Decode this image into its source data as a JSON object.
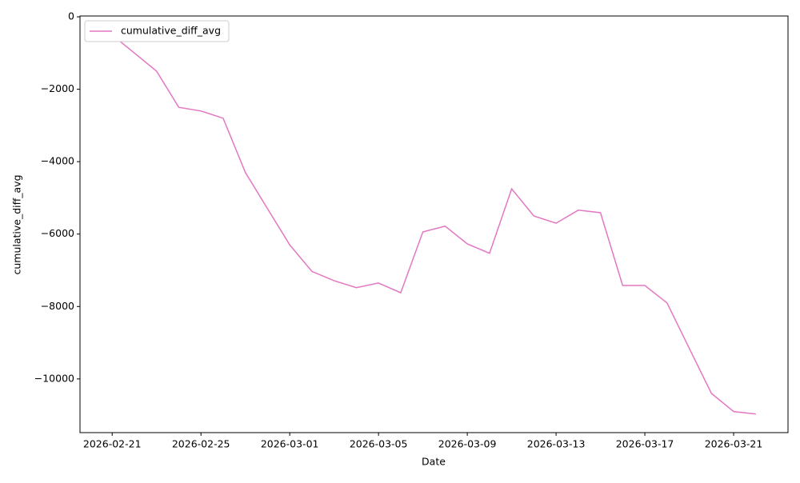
{
  "chart_data": {
    "type": "line",
    "x_label": "Date",
    "y_label": "cumulative_diff_avg",
    "x": [
      "2026-02-21",
      "2026-02-22",
      "2026-02-23",
      "2026-02-24",
      "2026-02-25",
      "2026-02-26",
      "2026-02-27",
      "2026-02-28",
      "2026-03-01",
      "2026-03-02",
      "2026-03-03",
      "2026-03-04",
      "2026-03-05",
      "2026-03-06",
      "2026-03-07",
      "2026-03-08",
      "2026-03-09",
      "2026-03-10",
      "2026-03-11",
      "2026-03-12",
      "2026-03-13",
      "2026-03-14",
      "2026-03-15",
      "2026-03-16",
      "2026-03-17",
      "2026-03-18",
      "2026-03-19",
      "2026-03-20",
      "2026-03-21",
      "2026-03-22"
    ],
    "series": [
      {
        "name": "cumulative_diff_avg",
        "color": "#e377c2",
        "values": [
          -500,
          -1000,
          -1500,
          -2500,
          -2600,
          -2800,
          -4300,
          -5300,
          -6300,
          -7030,
          -7290,
          -7480,
          -7350,
          -7620,
          -5940,
          -5780,
          -6270,
          -6530,
          -4750,
          -5500,
          -5700,
          -5340,
          -5410,
          -7420,
          -7420,
          -7900,
          -9150,
          -10400,
          -10900,
          -10970
        ]
      }
    ],
    "xlim": [
      "2026-02-19T13:12",
      "2026-03-23T10:48"
    ],
    "xticks": [
      "2026-02-21",
      "2026-02-25",
      "2026-03-01",
      "2026-03-05",
      "2026-03-09",
      "2026-03-13",
      "2026-03-17",
      "2026-03-21"
    ],
    "ylim": [
      -11483,
      23
    ],
    "yticks": [
      0,
      {
        "value": -2000,
        "label": "−2000"
      },
      {
        "value": -4000,
        "label": "−4000"
      },
      {
        "value": -6000,
        "label": "−6000"
      },
      {
        "value": -8000,
        "label": "−8000"
      },
      {
        "value": -10000,
        "label": "−10000"
      }
    ],
    "legend": "upper left",
    "grid": false
  }
}
